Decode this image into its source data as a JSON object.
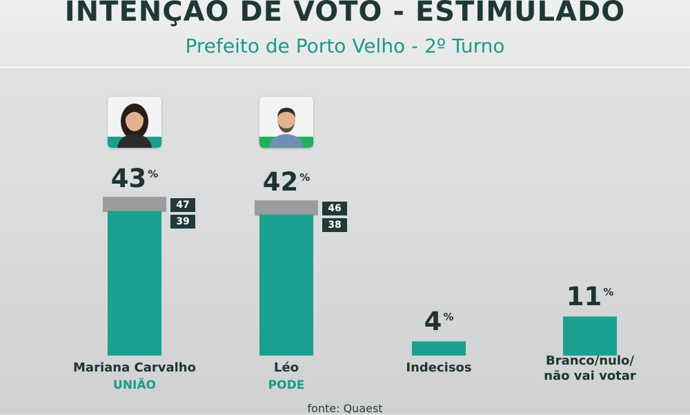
{
  "header": {
    "title": "INTENÇÃO DE VOTO - ESTIMULADO",
    "subtitle": "Prefeito de Porto Velho - 2º Turno"
  },
  "colors": {
    "bar": "#1aa08f",
    "margin_band": "#9a9c9d",
    "margin_box": "#1f3a38",
    "title": "#1f3835",
    "accent": "#1a9a88"
  },
  "chart_data": {
    "type": "bar",
    "percent_suffix": "%",
    "categories": [
      "Mariana Carvalho",
      "Léo",
      "Indecisos",
      "Branco/nulo/ não vai votar"
    ],
    "values": [
      43,
      42,
      4,
      11
    ],
    "bars": [
      {
        "name": "Mariana Carvalho",
        "party": "UNIÃO",
        "value": 43,
        "upper": 47,
        "lower": 39,
        "avatar_icon": "candidate-photo-woman-icon"
      },
      {
        "name": "Léo",
        "party": "PODE",
        "value": 42,
        "upper": 46,
        "lower": 38,
        "avatar_icon": "candidate-photo-man-icon"
      },
      {
        "name": "Indecisos",
        "value": 4
      },
      {
        "name_lines": [
          "Branco/nulo/",
          "não vai votar"
        ],
        "value": 11
      }
    ],
    "ylim": [
      0,
      50
    ],
    "grid": false,
    "legend": "none"
  },
  "footer": {
    "source": "fonte: Quaest"
  }
}
